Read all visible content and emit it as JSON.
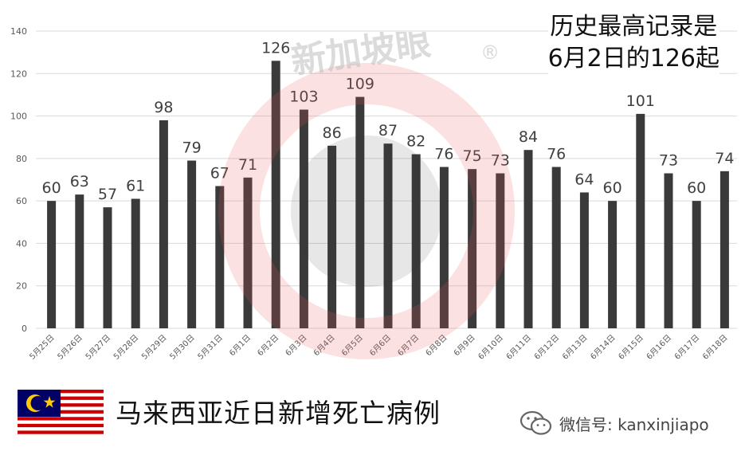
{
  "chart_data": {
    "type": "bar",
    "categories": [
      "5月25日",
      "5月26日",
      "5月27日",
      "5月28日",
      "5月29日",
      "5月30日",
      "5月31日",
      "6月1日",
      "6月2日",
      "6月3日",
      "6月4日",
      "6月5日",
      "6月6日",
      "6月7日",
      "6月8日",
      "6月9日",
      "6月10日",
      "6月11日",
      "6月12日",
      "6月13日",
      "6月14日",
      "6月15日",
      "6月16日",
      "6月17日",
      "6月18日"
    ],
    "values": [
      60,
      63,
      57,
      61,
      98,
      79,
      67,
      71,
      126,
      103,
      86,
      109,
      87,
      82,
      76,
      75,
      73,
      84,
      76,
      64,
      60,
      101,
      73,
      60,
      74
    ],
    "ylim": [
      0,
      140
    ],
    "yticks": [
      0,
      20,
      40,
      60,
      80,
      100,
      120,
      140
    ],
    "grid": true,
    "bar_color": "#3a3a3a"
  },
  "annotation": {
    "line1": "历史最高记录是",
    "line2": "6月2日的126起"
  },
  "footer": {
    "title": "马来西亚近日新增死亡病例",
    "wechat": "微信号: kanxinjiapo"
  },
  "watermark": {
    "text": "新加坡眼",
    "mark": "®",
    "color": "#e85a5a"
  },
  "flag": {
    "name": "malaysia-flag",
    "red": "#cc0000",
    "blue": "#010066",
    "yellow": "#ffcc00"
  }
}
